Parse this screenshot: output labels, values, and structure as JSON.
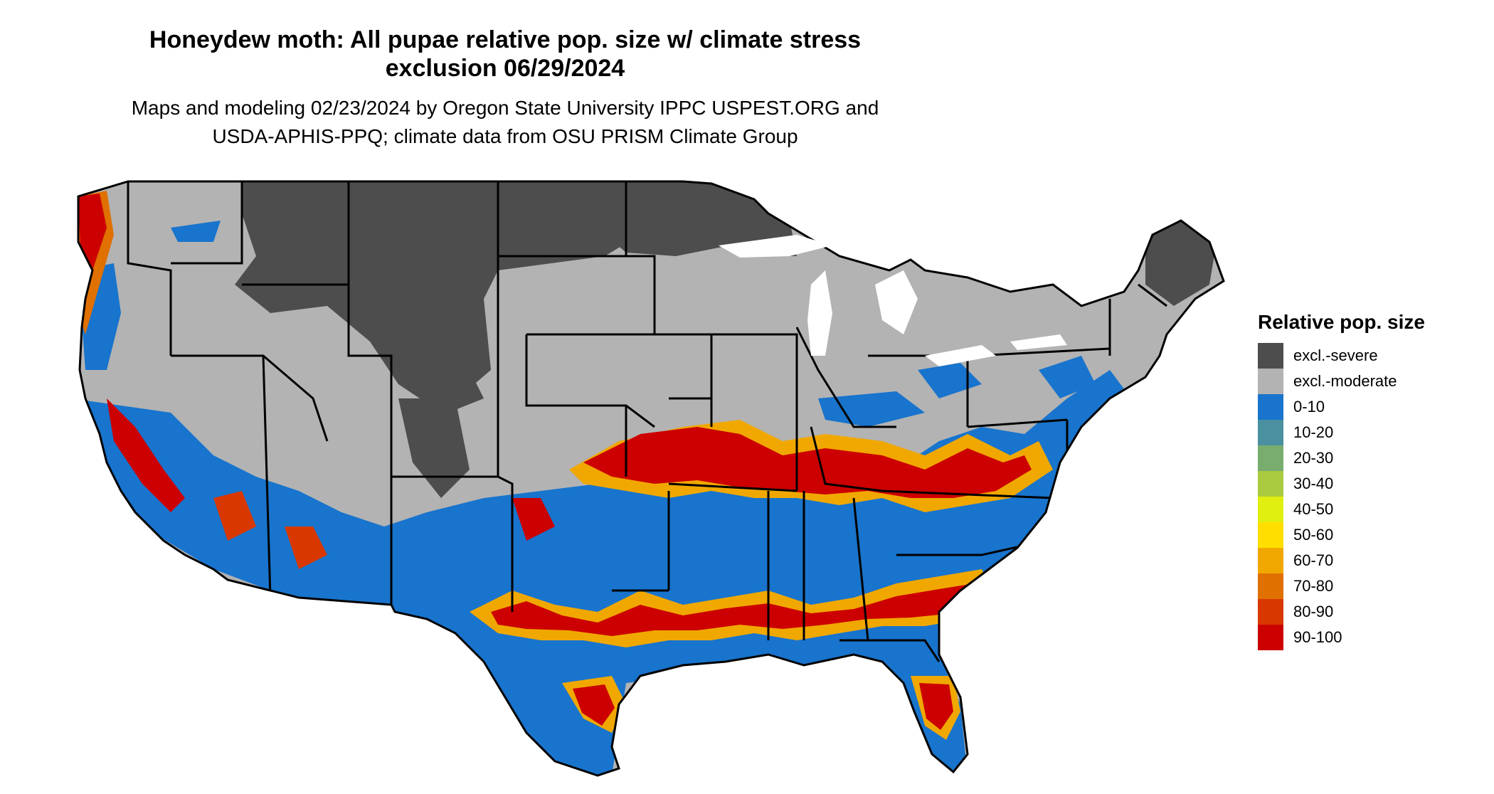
{
  "title": {
    "line1": "Honeydew moth: All pupae relative pop. size w/ climate stress",
    "line2": "exclusion 06/29/2024"
  },
  "subtitle": {
    "line1": "Maps and modeling 02/23/2024 by Oregon State University IPPC USPEST.ORG and",
    "line2": "USDA-APHIS-PPQ; climate data from OSU PRISM Climate Group"
  },
  "legend": {
    "title": "Relative pop. size",
    "items": [
      {
        "label": "excl.-severe",
        "color": "#4d4d4d"
      },
      {
        "label": "excl.-moderate",
        "color": "#b3b3b3"
      },
      {
        "label": "0-10",
        "color": "#1874cd"
      },
      {
        "label": "10-20",
        "color": "#4a90a0"
      },
      {
        "label": "20-30",
        "color": "#79ad70"
      },
      {
        "label": "30-40",
        "color": "#aacb40"
      },
      {
        "label": "40-50",
        "color": "#e0ee10"
      },
      {
        "label": "50-60",
        "color": "#ffde00"
      },
      {
        "label": "60-70",
        "color": "#f0a800"
      },
      {
        "label": "70-80",
        "color": "#e07000"
      },
      {
        "label": "80-90",
        "color": "#d83800"
      },
      {
        "label": "90-100",
        "color": "#cc0000"
      }
    ]
  }
}
